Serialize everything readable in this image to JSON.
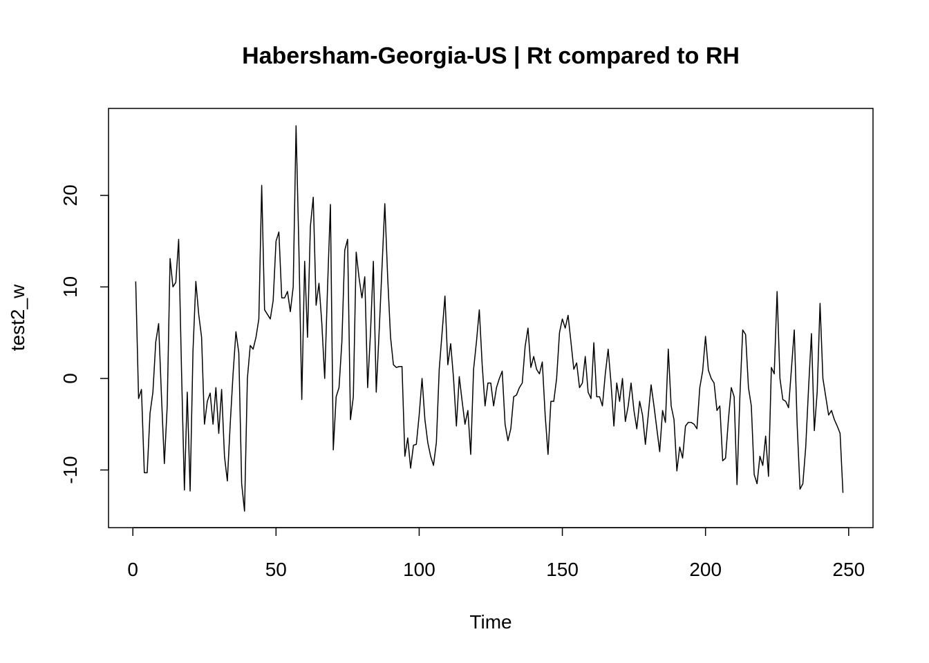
{
  "chart_data": {
    "type": "line",
    "title": "Habersham-Georgia-US | Rt compared to RH",
    "xlabel": "Time",
    "ylabel": "test2_w",
    "xlim": [
      -8.5,
      258.5
    ],
    "ylim": [
      -16.3,
      29.5
    ],
    "x_ticks": [
      0,
      50,
      100,
      150,
      200,
      250
    ],
    "y_ticks": [
      -10,
      0,
      10,
      20
    ],
    "grid": false,
    "legend": "none",
    "line_color": "#000000",
    "series": [
      {
        "x_start": 1,
        "values": [
          10.6,
          -2.2,
          -1.2,
          -10.3,
          -10.3,
          -3.8,
          -1.5,
          4.0,
          6.0,
          -2.0,
          -9.3,
          -3.0,
          13.1,
          10.0,
          10.5,
          15.2,
          0.8,
          -12.2,
          -1.5,
          -12.3,
          3.0,
          10.6,
          7.0,
          4.5,
          -5.0,
          -2.5,
          -1.6,
          -5.0,
          -1.0,
          -6.0,
          -1.2,
          -8.5,
          -11.2,
          -5.0,
          0.5,
          5.1,
          2.8,
          -11.5,
          -14.5,
          0.0,
          3.6,
          3.2,
          4.5,
          6.5,
          21.1,
          7.5,
          7.0,
          6.5,
          8.5,
          15.0,
          16.0,
          8.8,
          8.8,
          9.5,
          7.3,
          10.0,
          27.6,
          14.0,
          -2.3,
          12.8,
          4.5,
          16.6,
          19.8,
          8.0,
          10.4,
          6.0,
          0.0,
          10.0,
          19.0,
          -7.8,
          -2.0,
          -1.0,
          4.0,
          14.0,
          15.2,
          -4.5,
          -2.0,
          13.8,
          11.0,
          8.8,
          11.1,
          -1.0,
          5.0,
          12.8,
          -1.5,
          5.0,
          12.0,
          19.1,
          11.0,
          4.5,
          1.5,
          1.2,
          1.3,
          1.3,
          -8.5,
          -6.5,
          -9.8,
          -7.3,
          -7.2,
          -4.0,
          0.0,
          -4.5,
          -7.0,
          -8.5,
          -9.5,
          -7.0,
          1.0,
          5.0,
          9.0,
          1.5,
          3.8,
          0.0,
          -5.2,
          0.2,
          -2.5,
          -5.0,
          -3.5,
          -8.3,
          1.0,
          4.0,
          7.5,
          1.5,
          -3.0,
          -0.5,
          -0.5,
          -3.0,
          -1.0,
          0.0,
          0.8,
          -5.0,
          -6.8,
          -5.5,
          -2.0,
          -1.8,
          -1.0,
          -0.5,
          3.5,
          5.5,
          1.2,
          2.4,
          1.0,
          0.5,
          1.8,
          -4.0,
          -8.3,
          -2.5,
          -2.5,
          0.0,
          5.0,
          6.5,
          5.5,
          6.9,
          4.0,
          1.0,
          1.7,
          -1.0,
          -0.5,
          2.4,
          -1.5,
          -2.2,
          3.9,
          -2.0,
          -2.0,
          -3.0,
          0.5,
          3.2,
          -0.5,
          -5.2,
          -0.5,
          -2.5,
          0.0,
          -4.7,
          -3.0,
          -0.5,
          -3.5,
          -5.5,
          -2.5,
          -4.0,
          -7.2,
          -4.0,
          -0.7,
          -3.0,
          -5.5,
          -8.0,
          -3.5,
          -4.8,
          3.2,
          -3.0,
          -4.5,
          -10.1,
          -7.5,
          -8.7,
          -5.2,
          -4.8,
          -4.8,
          -5.0,
          -5.5,
          -1.0,
          0.8,
          4.6,
          0.9,
          0.0,
          -0.5,
          -3.5,
          -3.0,
          -9.0,
          -8.7,
          -4.5,
          -1.0,
          -2.0,
          -11.6,
          -2.0,
          5.3,
          4.8,
          -1.0,
          -3.0,
          -10.5,
          -11.5,
          -8.5,
          -9.5,
          -6.3,
          -10.7,
          1.2,
          0.5,
          9.5,
          0.0,
          -2.3,
          -2.5,
          -3.2,
          1.0,
          5.3,
          -5.0,
          -12.1,
          -11.5,
          -7.5,
          -1.0,
          4.9,
          -5.7,
          -1.5,
          8.2,
          0.0,
          -2.0,
          -4.0,
          -3.5,
          -4.5,
          -5.2,
          -6.0,
          -12.5
        ]
      }
    ]
  }
}
